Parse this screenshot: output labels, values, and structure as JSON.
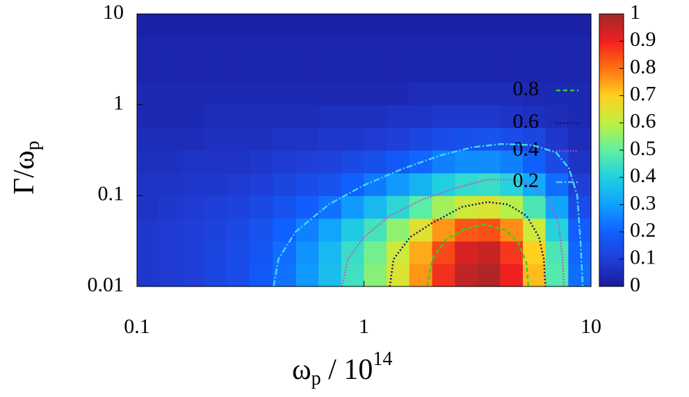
{
  "chart_data": {
    "type": "heatmap",
    "xlabel": [
      "ω",
      "p",
      " / 10",
      "14"
    ],
    "ylabel": [
      "Γ/ω",
      "p"
    ],
    "xlog": true,
    "ylog": true,
    "xlim": [
      0.1,
      10
    ],
    "ylim": [
      0.01,
      10
    ],
    "xticks": [
      0.1,
      1,
      10
    ],
    "yticks": [
      0.01,
      0.1,
      1,
      10
    ],
    "zlim": [
      0,
      1
    ],
    "zticks": [
      0,
      0.1,
      0.2,
      0.3,
      0.4,
      0.5,
      0.6,
      0.7,
      0.8,
      0.9,
      1
    ],
    "colormap": [
      "#1a1a9a",
      "#1f3fd8",
      "#1060ff",
      "#10a0ff",
      "#20d0e0",
      "#60f0a0",
      "#c0f040",
      "#ffd020",
      "#ff7010",
      "#f02020",
      "#a02828"
    ],
    "x": [
      0.11,
      0.14,
      0.18,
      0.22,
      0.28,
      0.35,
      0.45,
      0.56,
      0.71,
      0.89,
      1.12,
      1.41,
      1.78,
      2.24,
      2.82,
      3.55,
      4.47,
      5.62,
      7.08,
      8.91
    ],
    "y": [
      0.0133,
      0.0237,
      0.0422,
      0.075,
      0.133,
      0.237,
      0.422,
      0.75,
      1.33,
      2.37,
      4.22,
      7.5
    ],
    "z": [
      [
        0.08,
        0.09,
        0.1,
        0.12,
        0.14,
        0.18,
        0.23,
        0.29,
        0.36,
        0.45,
        0.54,
        0.64,
        0.76,
        0.88,
        0.96,
        0.98,
        0.9,
        0.72,
        0.48,
        0.22
      ],
      [
        0.08,
        0.09,
        0.1,
        0.12,
        0.14,
        0.17,
        0.22,
        0.28,
        0.35,
        0.44,
        0.52,
        0.62,
        0.74,
        0.85,
        0.93,
        0.95,
        0.87,
        0.7,
        0.47,
        0.21
      ],
      [
        0.08,
        0.09,
        0.1,
        0.11,
        0.13,
        0.16,
        0.2,
        0.25,
        0.31,
        0.39,
        0.46,
        0.55,
        0.65,
        0.76,
        0.83,
        0.84,
        0.77,
        0.62,
        0.41,
        0.19
      ],
      [
        0.07,
        0.08,
        0.09,
        0.1,
        0.11,
        0.13,
        0.16,
        0.19,
        0.23,
        0.29,
        0.35,
        0.42,
        0.49,
        0.57,
        0.62,
        0.64,
        0.59,
        0.47,
        0.31,
        0.14
      ],
      [
        0.07,
        0.07,
        0.08,
        0.08,
        0.09,
        0.1,
        0.12,
        0.14,
        0.16,
        0.2,
        0.24,
        0.29,
        0.34,
        0.4,
        0.43,
        0.44,
        0.41,
        0.32,
        0.22,
        0.1
      ],
      [
        0.06,
        0.06,
        0.07,
        0.07,
        0.07,
        0.08,
        0.09,
        0.1,
        0.11,
        0.13,
        0.15,
        0.18,
        0.21,
        0.25,
        0.27,
        0.27,
        0.25,
        0.2,
        0.13,
        0.07
      ],
      [
        0.05,
        0.05,
        0.05,
        0.06,
        0.06,
        0.06,
        0.07,
        0.07,
        0.08,
        0.08,
        0.09,
        0.1,
        0.12,
        0.14,
        0.15,
        0.16,
        0.14,
        0.12,
        0.08,
        0.05
      ],
      [
        0.04,
        0.04,
        0.04,
        0.05,
        0.05,
        0.05,
        0.05,
        0.05,
        0.06,
        0.06,
        0.06,
        0.07,
        0.07,
        0.08,
        0.08,
        0.08,
        0.07,
        0.06,
        0.05,
        0.04
      ],
      [
        0.04,
        0.04,
        0.04,
        0.04,
        0.04,
        0.04,
        0.04,
        0.04,
        0.04,
        0.04,
        0.04,
        0.04,
        0.05,
        0.05,
        0.05,
        0.05,
        0.05,
        0.04,
        0.04,
        0.04
      ],
      [
        0.03,
        0.03,
        0.03,
        0.03,
        0.03,
        0.03,
        0.03,
        0.03,
        0.03,
        0.03,
        0.03,
        0.03,
        0.03,
        0.03,
        0.03,
        0.03,
        0.03,
        0.03,
        0.03,
        0.03
      ],
      [
        0.03,
        0.03,
        0.03,
        0.03,
        0.03,
        0.03,
        0.03,
        0.03,
        0.03,
        0.03,
        0.03,
        0.03,
        0.03,
        0.03,
        0.03,
        0.03,
        0.03,
        0.03,
        0.03,
        0.03
      ],
      [
        0.02,
        0.02,
        0.02,
        0.02,
        0.02,
        0.02,
        0.02,
        0.02,
        0.02,
        0.02,
        0.02,
        0.02,
        0.02,
        0.02,
        0.02,
        0.02,
        0.02,
        0.02,
        0.02,
        0.02
      ]
    ],
    "contours": [
      {
        "level": 0.8,
        "color": "#30d030",
        "dash": "6 4",
        "x": [
          1.9,
          2,
          2.3,
          2.8,
          3.4,
          4.2,
          4.8,
          5.2,
          5.3
        ],
        "y": [
          0.01,
          0.02,
          0.033,
          0.043,
          0.048,
          0.042,
          0.03,
          0.018,
          0.01
        ]
      },
      {
        "level": 0.6,
        "color": "#101070",
        "dash": "2 3",
        "x": [
          1.3,
          1.35,
          1.6,
          2,
          2.7,
          3.5,
          4.3,
          5.2,
          5.9,
          6.2,
          6.3
        ],
        "y": [
          0.01,
          0.02,
          0.035,
          0.05,
          0.075,
          0.085,
          0.08,
          0.06,
          0.035,
          0.02,
          0.01
        ]
      },
      {
        "level": 0.4,
        "color": "#d040d0",
        "dash": "1.5 2.5",
        "x": [
          0.8,
          0.85,
          1,
          1.3,
          1.8,
          2.5,
          3.5,
          4.5,
          5.5,
          6.5,
          7.2,
          7.5,
          7.6
        ],
        "y": [
          0.01,
          0.02,
          0.035,
          0.06,
          0.09,
          0.12,
          0.15,
          0.15,
          0.13,
          0.09,
          0.05,
          0.02,
          0.01
        ]
      },
      {
        "level": 0.2,
        "color": "#40d8f0",
        "dash": "9 3 2 3",
        "x": [
          0.4,
          0.42,
          0.5,
          0.7,
          1,
          1.5,
          2.2,
          3,
          4,
          5.5,
          7,
          8,
          8.7,
          9,
          9.2
        ],
        "y": [
          0.01,
          0.02,
          0.04,
          0.08,
          0.13,
          0.2,
          0.28,
          0.34,
          0.37,
          0.36,
          0.3,
          0.2,
          0.1,
          0.03,
          0.01
        ]
      }
    ]
  }
}
